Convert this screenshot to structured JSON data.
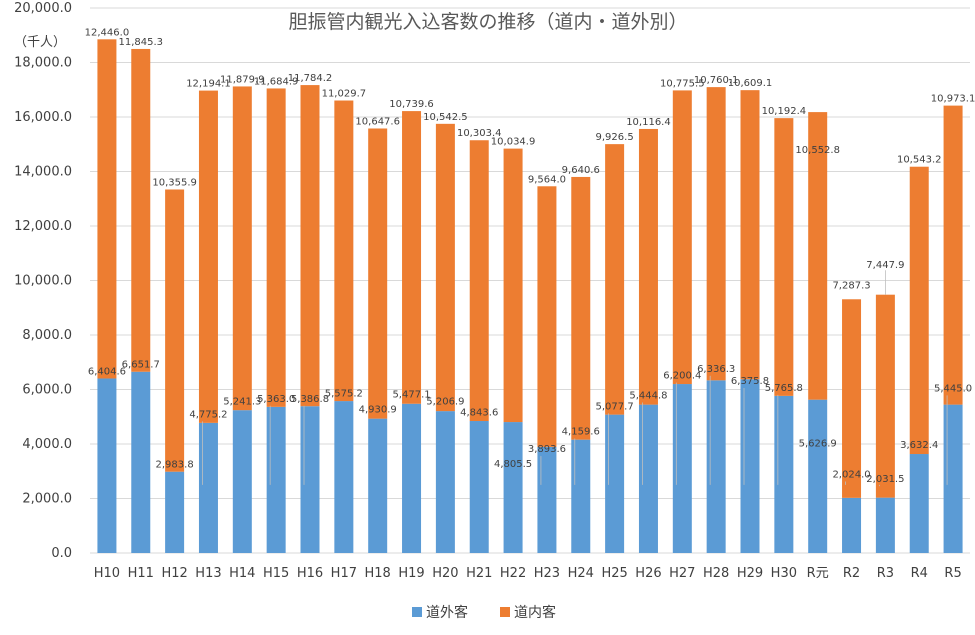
{
  "chart_data": {
    "type": "bar",
    "stacked": true,
    "title": "胆振管内観光入込客数の推移（道内・道外別）",
    "ylabel": "（千人）",
    "xlabel": "",
    "ylim": [
      0,
      20000
    ],
    "ytick_step": 2000,
    "ytick_labels": [
      "0.0",
      "2,000.0",
      "4,000.0",
      "6,000.0",
      "8,000.0",
      "10,000.0",
      "12,000.0",
      "14,000.0",
      "16,000.0",
      "18,000.0",
      "20,000.0"
    ],
    "categories": [
      "H10",
      "H11",
      "H12",
      "H13",
      "H14",
      "H15",
      "H16",
      "H17",
      "H18",
      "H19",
      "H20",
      "H21",
      "H22",
      "H23",
      "H24",
      "H25",
      "H26",
      "H27",
      "H28",
      "H29",
      "H30",
      "R元",
      "R2",
      "R3",
      "R4",
      "R5"
    ],
    "series": [
      {
        "name": "道外客",
        "color": "#5b9bd5",
        "values": [
          6404.6,
          6651.7,
          2983.8,
          4775.2,
          5241.3,
          5363.0,
          5386.8,
          5575.2,
          4930.9,
          5477.1,
          5206.9,
          4843.6,
          4805.5,
          3893.6,
          4159.6,
          5077.7,
          5444.8,
          6200.4,
          6336.3,
          6375.8,
          5765.8,
          5626.9,
          2024.0,
          2031.5,
          3632.4,
          5445.0
        ],
        "labels": [
          "6,404.6",
          "6,651.7",
          "2,983.8",
          "4,775.2",
          "5,241.3",
          "5,363.0",
          "5,386.8",
          "5,575.2",
          "4,930.9",
          "5,477.1",
          "5,206.9",
          "4,843.6",
          "4,805.5",
          "3,893.6",
          "4,159.6",
          "5,077.7",
          "5,444.8",
          "6,200.4",
          "6,336.3",
          "6,375.8",
          "5,765.8",
          "5,626.9",
          "2,024.0",
          "2,031.5",
          "3,632.4",
          "5,445.0"
        ]
      },
      {
        "name": "道内客",
        "color": "#ed7d31",
        "values": [
          12446.0,
          11845.3,
          10355.9,
          12194.1,
          11879.9,
          11684.9,
          11784.2,
          11029.7,
          10647.6,
          10739.6,
          10542.5,
          10303.4,
          10034.9,
          9564.0,
          9640.6,
          9926.5,
          10116.4,
          10775.5,
          10760.1,
          10609.1,
          10192.4,
          10552.8,
          7287.3,
          7447.9,
          10543.2,
          10973.1
        ],
        "labels": [
          "12,446.0",
          "11,845.3",
          "10,355.9",
          "12,194.1",
          "11,879.9",
          "11,684.9",
          "11,784.2",
          "11,029.7",
          "10,647.6",
          "10,739.6",
          "10,542.5",
          "10,303.4",
          "10,034.9",
          "9,564.0",
          "9,640.6",
          "9,926.5",
          "10,116.4",
          "10,775.5",
          "10,760.1",
          "10,609.1",
          "10,192.4",
          "10,552.8",
          "7,287.3",
          "7,447.9",
          "10,543.2",
          "10,973.1"
        ]
      }
    ],
    "legend_position": "bottom",
    "grid": true
  }
}
